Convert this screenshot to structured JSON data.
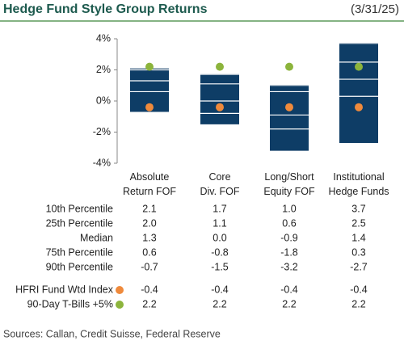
{
  "chart_data": {
    "type": "floating_bar",
    "title": "Hedge Fund Style Group Returns",
    "date": "(3/31/25)",
    "categories": [
      "Absolute Return FOF",
      "Core Div. FOF",
      "Long/Short Equity FOF",
      "Institutional Hedge Funds"
    ],
    "bar_color": "#0e3d66",
    "ylim": [
      -4,
      4
    ],
    "yticks": [
      {
        "value": 4,
        "label": "4%"
      },
      {
        "value": 2,
        "label": "2%"
      },
      {
        "value": 0,
        "label": "0%"
      },
      {
        "value": -2,
        "label": "-2%"
      },
      {
        "value": -4,
        "label": "-4%"
      }
    ],
    "percentiles": [
      {
        "name": "10th Percentile",
        "values": [
          2.1,
          1.7,
          1.0,
          3.7
        ],
        "value_labels": [
          "2.1",
          "1.7",
          "1.0",
          "3.7"
        ]
      },
      {
        "name": "25th Percentile",
        "values": [
          2.0,
          1.1,
          0.6,
          2.5
        ],
        "value_labels": [
          "2.0",
          "1.1",
          "0.6",
          "2.5"
        ]
      },
      {
        "name": "Median",
        "values": [
          1.3,
          0.0,
          -0.9,
          1.4
        ],
        "value_labels": [
          "1.3",
          "0.0",
          "-0.9",
          "1.4"
        ]
      },
      {
        "name": "75th Percentile",
        "values": [
          0.6,
          -0.8,
          -1.8,
          0.3
        ],
        "value_labels": [
          "0.6",
          "-0.8",
          "-1.8",
          "0.3"
        ]
      },
      {
        "name": "90th Percentile",
        "values": [
          -0.7,
          -1.5,
          -3.2,
          -2.7
        ],
        "value_labels": [
          "-0.7",
          "-1.5",
          "-3.2",
          "-2.7"
        ]
      }
    ],
    "series": [
      {
        "name": "HFRI Fund Wtd Index",
        "color": "#ef8a3c",
        "values": [
          -0.4,
          -0.4,
          -0.4,
          -0.4
        ]
      },
      {
        "name": "90-Day T-Bills +5%",
        "color": "#8cb43c",
        "values": [
          2.2,
          2.2,
          2.2,
          2.2
        ]
      }
    ],
    "source": "Sources: Callan, Credit Suisse, Federal Reserve"
  }
}
